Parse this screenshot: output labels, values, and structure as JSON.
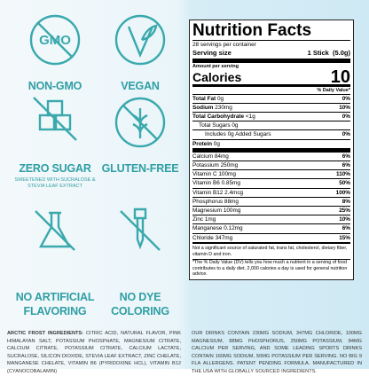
{
  "badges": [
    {
      "icon_text": "GMO",
      "label": "NON-GMO"
    },
    {
      "label": "VEGAN"
    },
    {
      "label": "ZERO SUGAR",
      "note": "SWEETENED WITH SUCRALOSE & STEVIA LEAF EXTRACT"
    },
    {
      "label": "GLUTEN-FREE"
    },
    {
      "label": [
        "NO ARTIFICIAL",
        "FLAVORING"
      ]
    },
    {
      "label": [
        "NO DYE",
        "COLORING"
      ]
    }
  ],
  "ingredients": {
    "heading": "ARCTIC FROST INGREDIENTS:",
    "text": "CITRIC ACID, NATURAL FLAVOR, PINK HIMALAYAN SALT, POTASSIUM PHOSPHATE, MAGNESIUM CITRATE, CALCIUM CITRATE, POTASSIUM CITRATE, CALCIUM LACTATE, SUCRALOSE, SILICON DIOXIDE, STEVIA LEAF EXTRACT, ZINC CHELATE, MANGANESE CHELATE, VITAMIN B6 (PYRIDOXINE HCL), VITAMIN B12 (CYANOCOBALAMIN)"
  },
  "nutrition": {
    "title": "Nutrition Facts",
    "servings": "28 servings per container",
    "serving_size_label": "Serving size",
    "serving_size_value": "1 Stick",
    "serving_size_weight": "(5.0g)",
    "amount_per_serving": "Amount per serving",
    "calories_label": "Calories",
    "calories": 10,
    "dv_header": "% Daily Value*",
    "rows": [
      {
        "name": "Total Fat",
        "amount": "0g",
        "dv": "0%",
        "bold": true
      },
      {
        "name": "Sodium",
        "amount": "230mg",
        "dv": "10%",
        "bold": true
      },
      {
        "name": "Total Carbohydrate",
        "amount": "<1g",
        "dv": "0%",
        "bold": true
      },
      {
        "name": "Total Sugars",
        "amount": "0g",
        "indent": 1
      },
      {
        "name": "Includes 0g Added Sugars",
        "dv": "0%",
        "indent": 2
      },
      {
        "name": "Protein",
        "amount": "0g",
        "bold": true
      },
      {
        "name": "Calcium",
        "amount": "84mg",
        "dv": "6%"
      },
      {
        "name": "Potassium",
        "amount": "250mg",
        "dv": "6%"
      },
      {
        "name": "Vitamin C",
        "amount": "100mg",
        "dv": "110%"
      },
      {
        "name": "Vitamin B6",
        "amount": "0.85mg",
        "dv": "50%"
      },
      {
        "name": "Vitamin B12",
        "amount": "2.4mcg",
        "dv": "100%"
      },
      {
        "name": "Phosphorus",
        "amount": "88mg",
        "dv": "8%"
      },
      {
        "name": "Magnesium",
        "amount": "100mg",
        "dv": "25%"
      },
      {
        "name": "Zinc",
        "amount": "1mg",
        "dv": "10%"
      },
      {
        "name": "Manganese",
        "amount": "0.12mg",
        "dv": "6%"
      },
      {
        "name": "Chloride",
        "amount": "347mg",
        "dv": "15%"
      }
    ],
    "footnote_1": "Not a significant source of saturated fat, trans fat, cholesterol, dietary fiber, vitamin D and iron.",
    "footnote_2": "*The % Daily Value (DV) tells you how much a nutrient in a serving of food contributes to a daily diet. 2,000 calories a day is used for general nutrition advice."
  },
  "claims": "OUR DRINKS CONTAIN 230MG SODIUM, 347MG CHLORIDE, 100MG MAGNESIUM, 88MG PHOSPHORUS, 250MG POTASSIUM, 84MG CALCIUM PER SERVING, AND SOME LEADING SPORTS DRINKS CONTAIN 160MG SODIUM, 50MG POTASSIUM PER SERVING. NO BIG 9 FLA ALLERGENS. PATENT PENDING FORMULA. MANUFACTURED IN THE USA WITH GLOBALLY SOURCED INGREDIENTS."
}
